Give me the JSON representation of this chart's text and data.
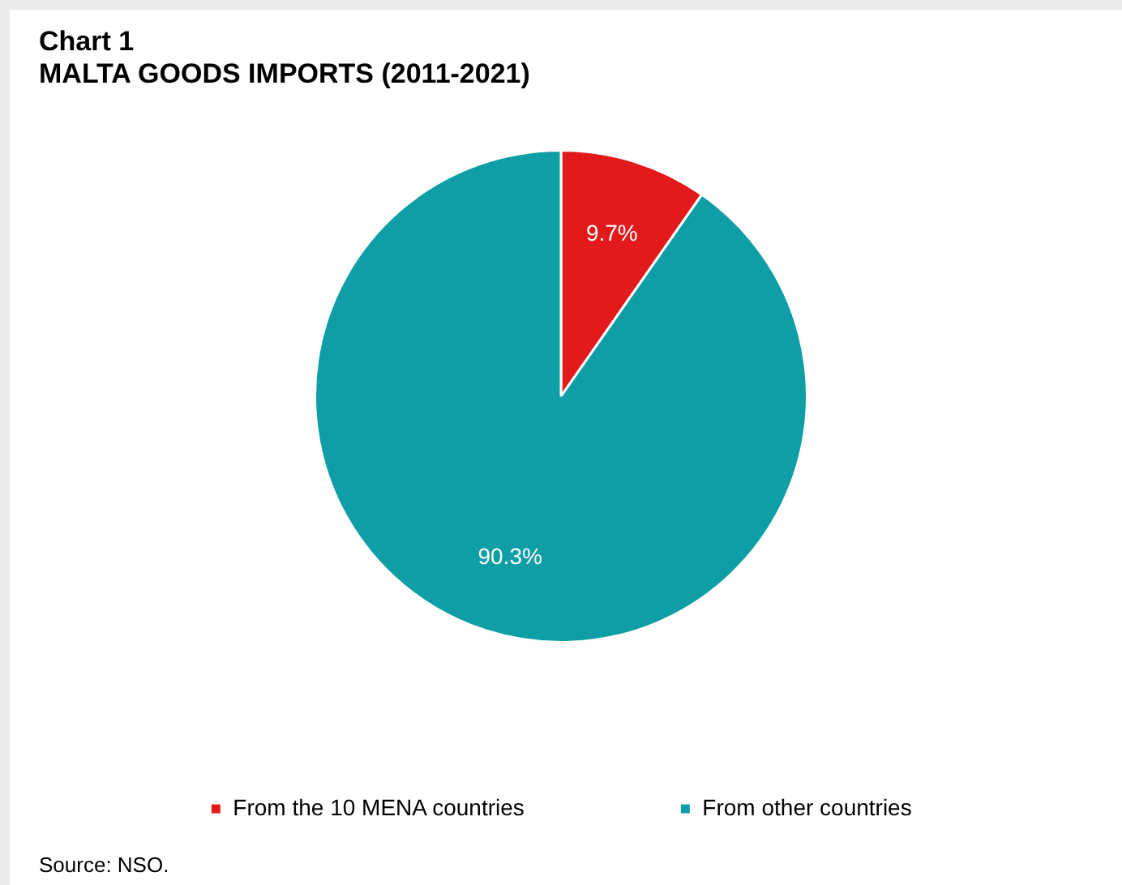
{
  "chart_data": {
    "type": "pie",
    "title": "Chart 1",
    "subtitle": "MALTA GOODS IMPORTS (2011-2021)",
    "categories": [
      "From the 10 MENA countries",
      "From other countries"
    ],
    "values": [
      9.7,
      90.3
    ],
    "colors": [
      "#e31a1c",
      "#0f9ea6"
    ],
    "value_labels": [
      "9.7%",
      "90.3%"
    ],
    "legend": "bottom",
    "annotations": [
      "Source: NSO."
    ]
  }
}
